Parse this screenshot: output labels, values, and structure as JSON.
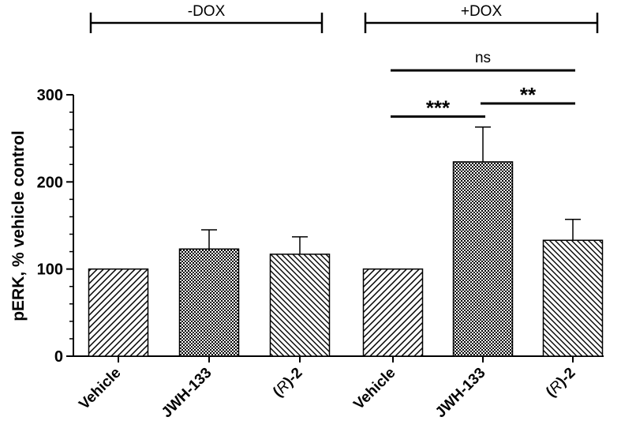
{
  "chart_data": {
    "type": "bar",
    "title": "",
    "ylabel": "pERK, % vehicle control",
    "xlabel": "",
    "ylim": [
      0,
      300
    ],
    "yticks": [
      0,
      100,
      200,
      300
    ],
    "grid": false,
    "categories": [
      {
        "pre": "",
        "italic": "",
        "post": "Vehicle"
      },
      {
        "pre": "",
        "italic": "",
        "post": "JWH-133"
      },
      {
        "pre": "(",
        "italic": "R",
        "post": ")-2"
      },
      {
        "pre": "",
        "italic": "",
        "post": "Vehicle"
      },
      {
        "pre": "",
        "italic": "",
        "post": "JWH-133"
      },
      {
        "pre": "(",
        "italic": "R",
        "post": ")-2"
      }
    ],
    "values": [
      100,
      123,
      117,
      100,
      223,
      133
    ],
    "errors": [
      0,
      22,
      20,
      0,
      40,
      24
    ],
    "patterns": [
      "diag-right",
      "checker",
      "diag-left",
      "diag-right",
      "checker",
      "diag-left"
    ],
    "groups": [
      {
        "label": "-DOX",
        "from": 0,
        "to": 2
      },
      {
        "label": "+DOX",
        "from": 3,
        "to": 5
      }
    ],
    "significance": [
      {
        "from": 3,
        "to": 4,
        "label": "***",
        "y": 275
      },
      {
        "from": 4,
        "to": 5,
        "label": "**",
        "y": 290
      },
      {
        "from": 3,
        "to": 5,
        "label": "ns",
        "y": 328
      }
    ]
  }
}
